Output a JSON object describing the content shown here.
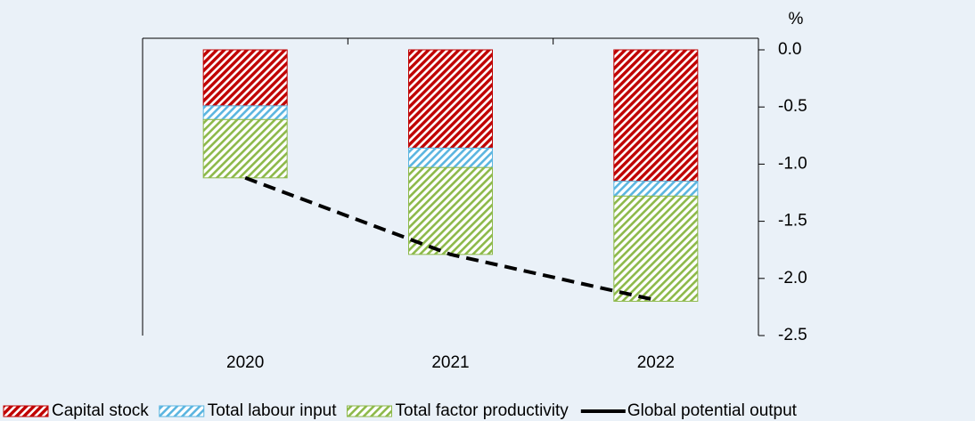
{
  "chart_data": {
    "type": "stacked_bar",
    "categories": [
      "2020",
      "2021",
      "2022"
    ],
    "series": [
      {
        "name": "Capital stock",
        "color": "#c00000",
        "values": [
          -0.49,
          -0.86,
          -1.15
        ]
      },
      {
        "name": "Total labour input",
        "color": "#5bb5e0",
        "values": [
          -0.12,
          -0.17,
          -0.13
        ]
      },
      {
        "name": "Total factor productivity",
        "color": "#8db94a",
        "values": [
          -0.51,
          -0.76,
          -0.92
        ]
      },
      {
        "name": "Global potential output",
        "color": "#000000",
        "type": "line",
        "values": [
          -1.12,
          -1.79,
          -2.19
        ]
      }
    ],
    "y_unit": "%",
    "ylim": [
      -2.5,
      0
    ],
    "yticks": [
      {
        "value": 0,
        "label": "0.0"
      },
      {
        "value": -0.5,
        "label": "-0.5"
      },
      {
        "value": -1,
        "label": "-1.0"
      },
      {
        "value": -1.5,
        "label": "-1.5"
      },
      {
        "value": -2,
        "label": "-2.0"
      },
      {
        "value": -2.5,
        "label": "-2.5"
      }
    ]
  }
}
